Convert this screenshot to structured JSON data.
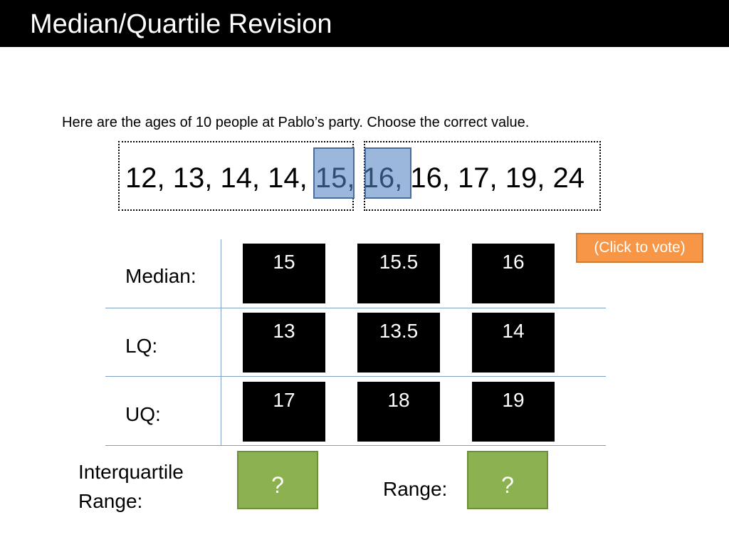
{
  "header": {
    "title": "Median/Quartile Revision"
  },
  "prompt": "Here are the ages of 10 people at Pablo’s party. Choose the correct value.",
  "ages": {
    "part1": "12, 13, 14, 14, ",
    "highlight1": "15,",
    "gap": " ",
    "highlight2": "16,",
    "part2": " 16, 17, 19, 24"
  },
  "vote_button": "(Click to vote)",
  "rows": [
    {
      "label": "Median:",
      "options": [
        "15",
        "15.5",
        "16"
      ]
    },
    {
      "label": "LQ:",
      "options": [
        "13",
        "13.5",
        "14"
      ]
    },
    {
      "label": "UQ:",
      "options": [
        "17",
        "18",
        "19"
      ]
    }
  ],
  "answers": {
    "iqr_label_line1": "Interquartile",
    "iqr_label_line2": "Range:",
    "iqr_value": "?",
    "range_label": "Range:",
    "range_value": "?"
  },
  "colors": {
    "title_bg": "#000000",
    "highlight": "#9bb8dc",
    "vote_button": "#f79646",
    "answer_box": "#8cb150",
    "option_bg": "#000000"
  }
}
